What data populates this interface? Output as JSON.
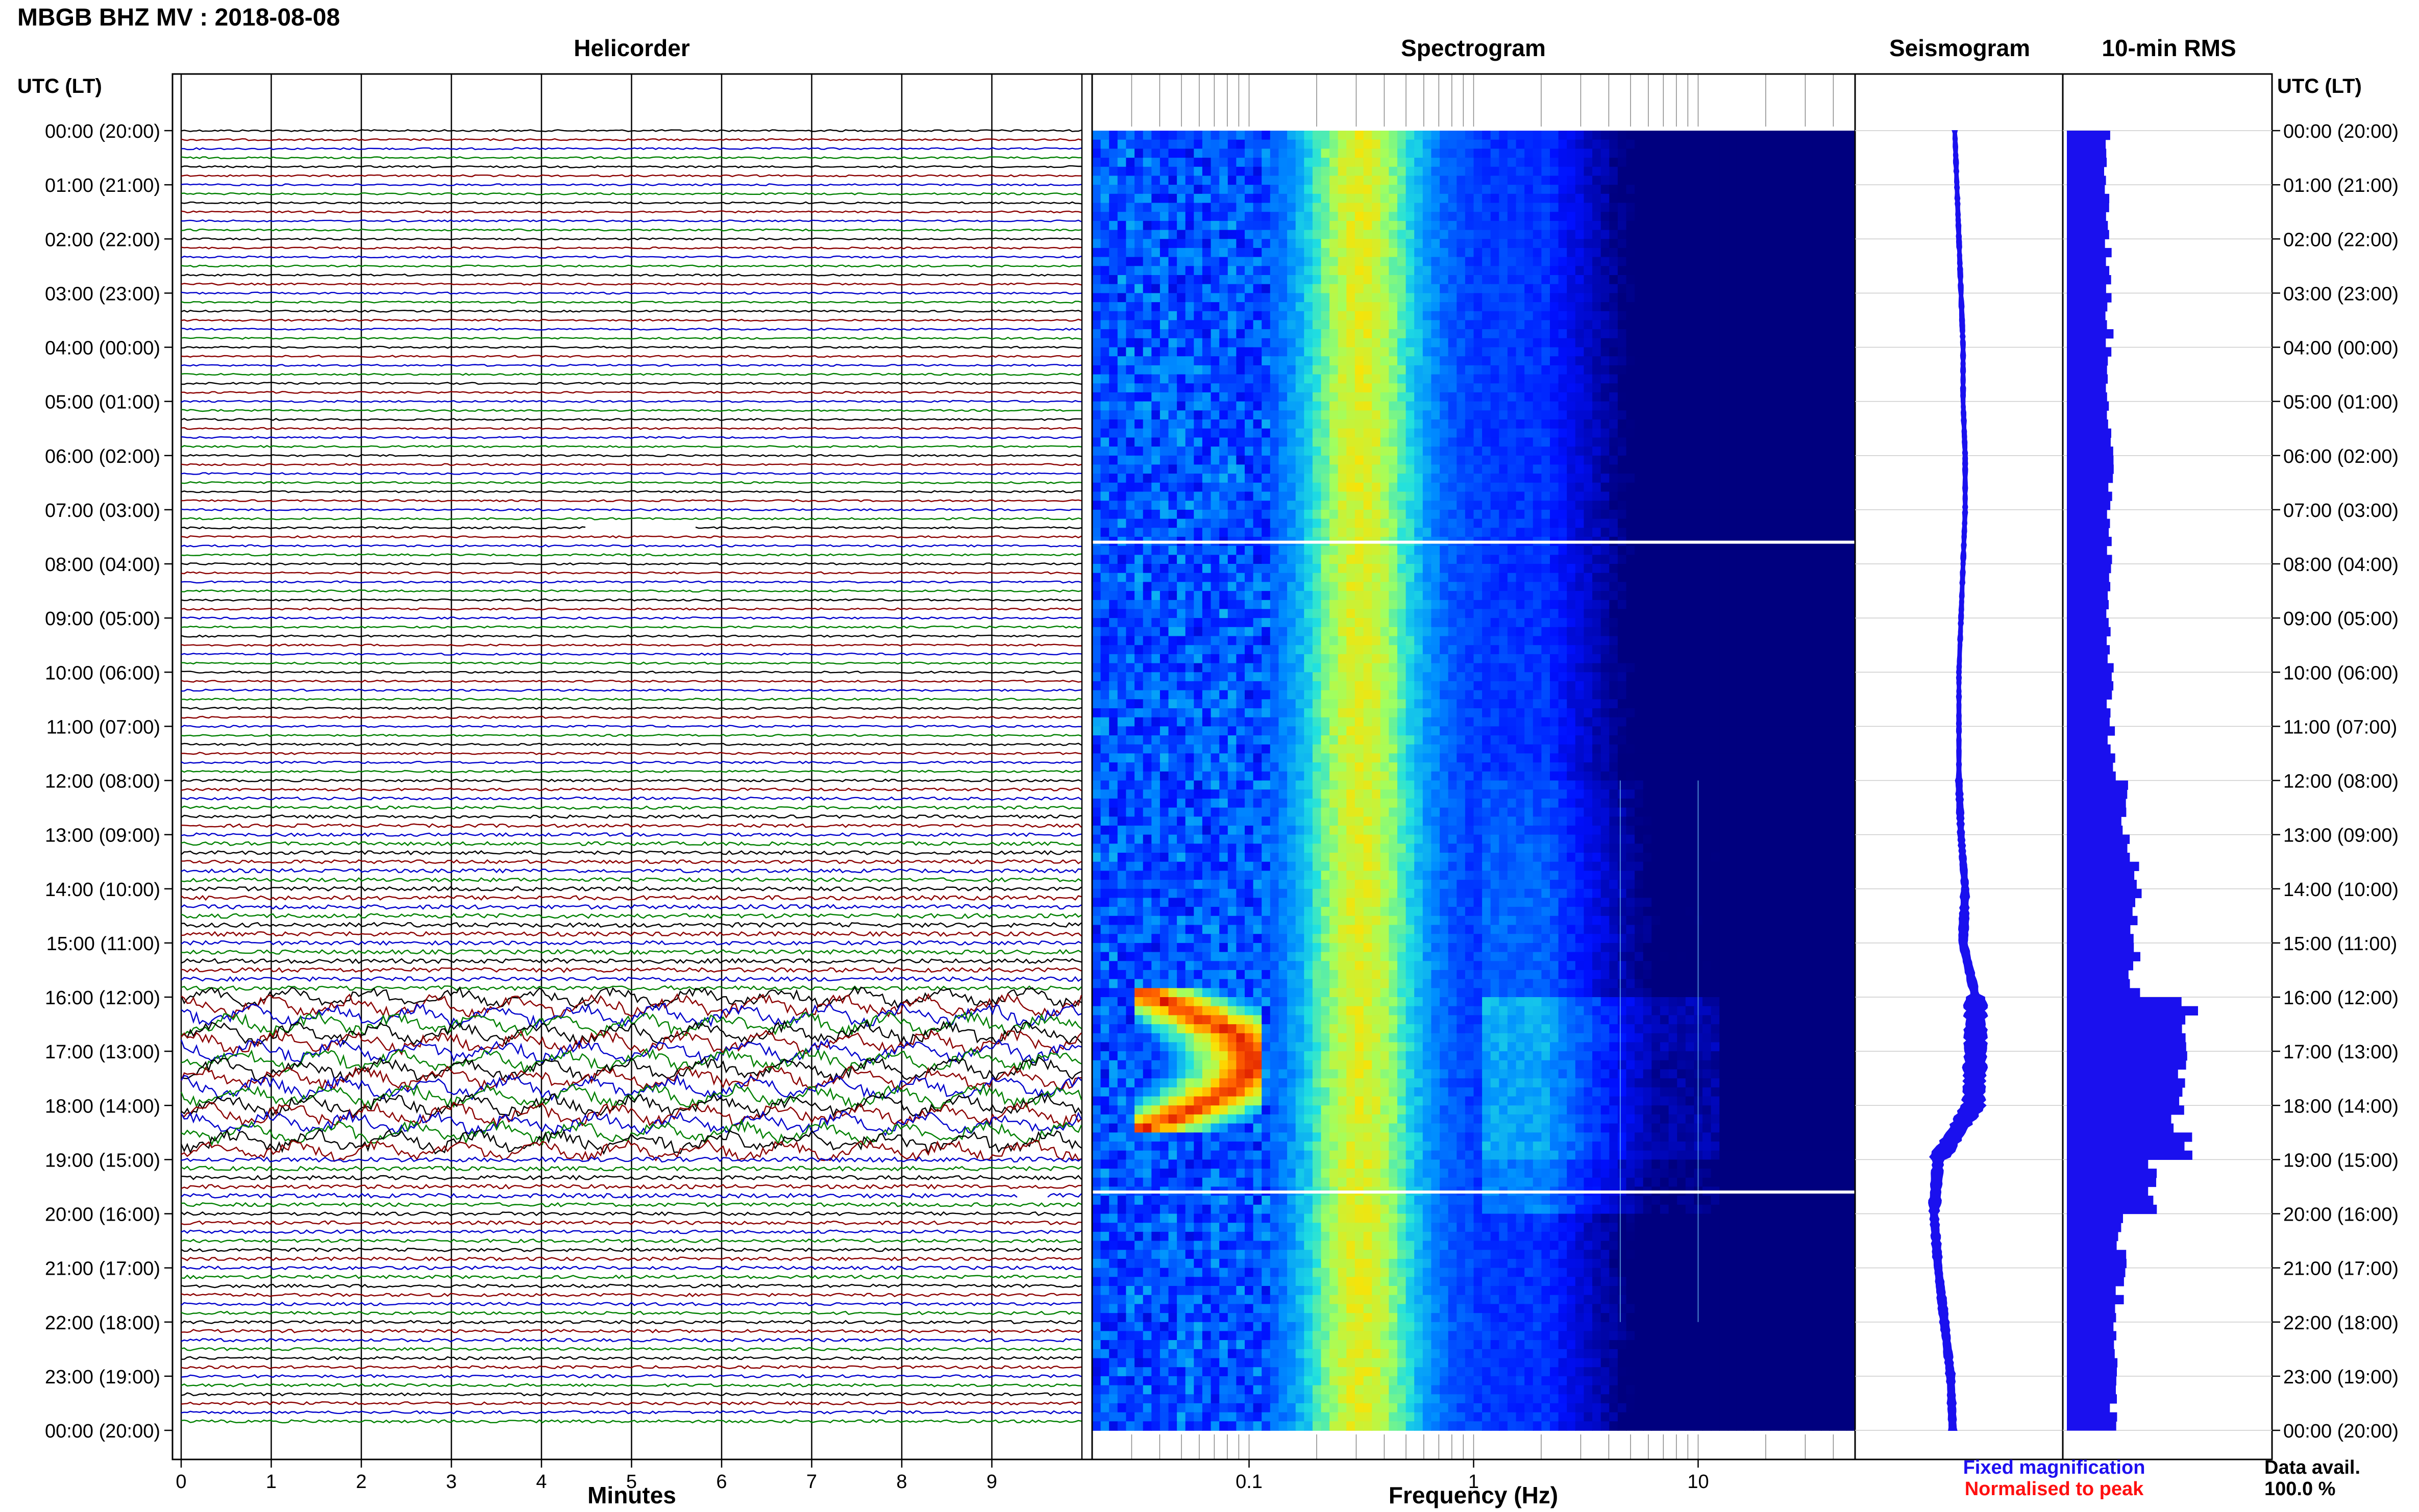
{
  "header": {
    "title": "MBGB BHZ MV : 2018-08-08"
  },
  "panels": {
    "helicorder": "Helicorder",
    "spectrogram": "Spectrogram",
    "seismogram": "Seismogram",
    "rms": "10-min RMS"
  },
  "axes": {
    "time_axis_label": "UTC (LT)",
    "minutes_label": "Minutes",
    "frequency_label": "Frequency (Hz)",
    "time_ticks": [
      "00:00 (20:00)",
      "01:00 (21:00)",
      "02:00 (22:00)",
      "03:00 (23:00)",
      "04:00 (00:00)",
      "05:00 (01:00)",
      "06:00 (02:00)",
      "07:00 (03:00)",
      "08:00 (04:00)",
      "09:00 (05:00)",
      "10:00 (06:00)",
      "11:00 (07:00)",
      "12:00 (08:00)",
      "13:00 (09:00)",
      "14:00 (10:00)",
      "15:00 (11:00)",
      "16:00 (12:00)",
      "17:00 (13:00)",
      "18:00 (14:00)",
      "19:00 (15:00)",
      "20:00 (16:00)",
      "21:00 (17:00)",
      "22:00 (18:00)",
      "23:00 (19:00)",
      "00:00 (20:00)"
    ],
    "minute_ticks": [
      "0",
      "1",
      "2",
      "3",
      "4",
      "5",
      "6",
      "7",
      "8",
      "9"
    ],
    "frequency_ticks": [
      {
        "value": 0.1,
        "label": "0.1"
      },
      {
        "value": 1,
        "label": "1"
      },
      {
        "value": 10,
        "label": "10"
      }
    ]
  },
  "legend": {
    "fixed": "Fixed magnification",
    "normalised": "Normalised to peak",
    "fixed_color": "#1f10f0",
    "normalised_color": "#ff1010"
  },
  "data_availability": {
    "label": "Data avail.",
    "value": "100.0 %"
  },
  "colors": {
    "trace_cycle": [
      "#000000",
      "#8b0000",
      "#0000cc",
      "#008000"
    ],
    "seismogram": "#1a10ee",
    "rms": "#1a10ee",
    "spectrogram_low": "#000a8f",
    "spectrogram_high": "#ff2000"
  },
  "chart_data": [
    {
      "type": "line",
      "name": "helicorder",
      "x_range_minutes": [
        0,
        10
      ],
      "rows_per_hour": 6,
      "hours": 24,
      "row_amplitude_relative": [
        [
          0.15,
          0.15,
          0.15,
          0.15,
          0.15,
          0.15
        ],
        [
          0.15,
          0.15,
          0.15,
          0.15,
          0.15,
          0.15
        ],
        [
          0.15,
          0.15,
          0.15,
          0.15,
          0.15,
          0.15
        ],
        [
          0.15,
          0.15,
          0.15,
          0.15,
          0.15,
          0.15
        ],
        [
          0.15,
          0.15,
          0.15,
          0.15,
          0.15,
          0.15
        ],
        [
          0.15,
          0.15,
          0.15,
          0.15,
          0.15,
          0.15
        ],
        [
          0.15,
          0.15,
          0.15,
          0.15,
          0.15,
          0.15
        ],
        [
          0.16,
          0.16,
          0.16,
          0.16,
          0.16,
          0.16
        ],
        [
          0.16,
          0.16,
          0.16,
          0.16,
          0.16,
          0.16
        ],
        [
          0.16,
          0.16,
          0.16,
          0.16,
          0.16,
          0.16
        ],
        [
          0.16,
          0.16,
          0.16,
          0.16,
          0.16,
          0.16
        ],
        [
          0.16,
          0.16,
          0.18,
          0.18,
          0.18,
          0.18
        ],
        [
          0.2,
          0.22,
          0.24,
          0.26,
          0.26,
          0.28
        ],
        [
          0.28,
          0.3,
          0.3,
          0.3,
          0.32,
          0.32
        ],
        [
          0.34,
          0.36,
          0.36,
          0.38,
          0.38,
          0.36
        ],
        [
          0.34,
          0.36,
          0.38,
          0.38,
          0.36,
          0.36
        ],
        [
          0.8,
          0.9,
          0.9,
          0.9,
          0.9,
          0.9
        ],
        [
          0.9,
          0.9,
          0.9,
          0.9,
          0.9,
          0.9
        ],
        [
          0.9,
          0.9,
          0.9,
          0.9,
          0.9,
          0.8
        ],
        [
          0.4,
          0.36,
          0.34,
          0.34,
          0.36,
          0.32
        ],
        [
          0.3,
          0.3,
          0.28,
          0.28,
          0.28,
          0.28
        ],
        [
          0.28,
          0.28,
          0.28,
          0.26,
          0.26,
          0.26
        ],
        [
          0.26,
          0.26,
          0.26,
          0.24,
          0.24,
          0.24
        ],
        [
          0.24,
          0.24,
          0.24,
          0.24,
          0.24,
          0.24
        ]
      ],
      "gaps": [
        {
          "row": 44,
          "start_minute": 4.5,
          "end_minute": 5.7
        },
        {
          "row": 118,
          "start_minute": 9.3,
          "end_minute": 9.6
        }
      ]
    },
    {
      "type": "heatmap",
      "name": "spectrogram",
      "x_scale": "log",
      "x_range_hz": [
        0.02,
        50
      ],
      "y_range_hours": [
        0,
        24
      ],
      "white_lines_hours": [
        7.6,
        19.6
      ],
      "microseism_peak_hz": 0.3,
      "high_energy_event": {
        "start_hour": 15.8,
        "end_hour": 18.4,
        "frequency_hz": [
          0.03,
          0.11
        ],
        "peak_hour": 17.2
      },
      "narrow_band_lines_hz": [
        4.5,
        10
      ]
    },
    {
      "type": "line",
      "name": "seismogram",
      "y_range_hours": [
        0,
        24
      ],
      "x_offset_relative": [
        0.48,
        0.49,
        0.5,
        0.51,
        0.52,
        0.52,
        0.53,
        0.53,
        0.52,
        0.51,
        0.5,
        0.5,
        0.5,
        0.51,
        0.53,
        0.52,
        0.58,
        0.58,
        0.57,
        0.4,
        0.38,
        0.4,
        0.43,
        0.46,
        0.47
      ],
      "band_width_relative": [
        0.02,
        0.02,
        0.02,
        0.02,
        0.02,
        0.02,
        0.02,
        0.02,
        0.02,
        0.02,
        0.02,
        0.02,
        0.03,
        0.03,
        0.04,
        0.04,
        0.1,
        0.1,
        0.1,
        0.05,
        0.04,
        0.04,
        0.04,
        0.04,
        0.04
      ]
    },
    {
      "type": "bar",
      "name": "rms",
      "y_range_hours": [
        0,
        24
      ],
      "orientation": "horizontal",
      "x_range_relative": [
        0,
        1
      ],
      "values_per_hour": [
        0.33,
        0.34,
        0.34,
        0.35,
        0.35,
        0.35,
        0.36,
        0.36,
        0.36,
        0.36,
        0.36,
        0.37,
        0.48,
        0.55,
        0.58,
        0.56,
        1.0,
        0.92,
        0.95,
        0.72,
        0.45,
        0.44,
        0.4,
        0.38
      ]
    }
  ]
}
